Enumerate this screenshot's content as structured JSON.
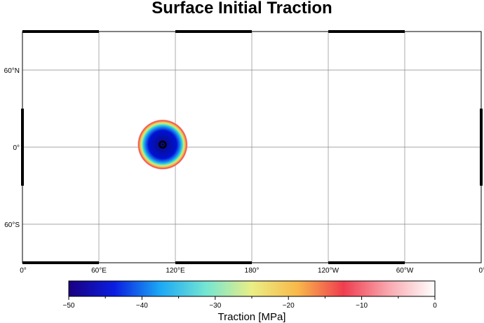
{
  "title": "Surface Initial Traction",
  "map": {
    "projection": "equirectangular",
    "lon_range": [
      0,
      360
    ],
    "lat_range": [
      -90,
      90
    ],
    "grid_interval_deg": 60,
    "x_labels": [
      "0°",
      "60°E",
      "120°E",
      "180°",
      "120°W",
      "60°W",
      "0°"
    ],
    "y_labels": [
      "60°S",
      "0°",
      "60°N"
    ],
    "colors": {
      "frame": "#000000",
      "grid": "#888888",
      "background": "#ffffff"
    },
    "features": [
      {
        "type": "traction_patch",
        "center_lon": 110,
        "center_lat": 2,
        "radius_deg": 20,
        "min_value": -50,
        "max_value": 0
      },
      {
        "type": "marker",
        "lon": 110,
        "lat": 2,
        "symbol": "circle"
      }
    ]
  },
  "colorbar": {
    "label": "Traction [MPa]",
    "range": [
      -50,
      0
    ],
    "ticks": [
      "−50",
      "−40",
      "−30",
      "−20",
      "−10",
      "0"
    ],
    "colormap": "rainbow-to-white",
    "stops": [
      "#1a0080",
      "#0a1ee0",
      "#1ca8f5",
      "#74e6d2",
      "#eaee85",
      "#f8b84a",
      "#ef3d4f",
      "#f8a9b0",
      "#ffffff"
    ]
  }
}
